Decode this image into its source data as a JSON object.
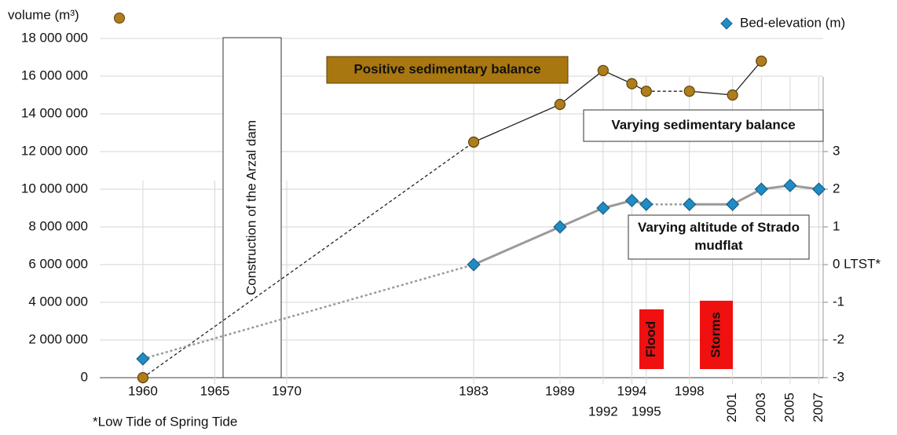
{
  "chart_data": {
    "type": "line",
    "xlim": [
      1957,
      2007.3
    ],
    "xticks": [
      1960,
      1965,
      1970,
      1983,
      1989,
      1992,
      1994,
      1995,
      1998,
      2001,
      2003,
      2005,
      2007
    ],
    "ylim": [
      0,
      18000000
    ],
    "yticks": [
      {
        "value": 0,
        "label": "0"
      },
      {
        "value": 2000000,
        "label": "2 000 000"
      },
      {
        "value": 4000000,
        "label": "4 000 000"
      },
      {
        "value": 6000000,
        "label": "6 000 000"
      },
      {
        "value": 8000000,
        "label": "8 000 000"
      },
      {
        "value": 10000000,
        "label": "10 000 000"
      },
      {
        "value": 12000000,
        "label": "12 000 000"
      },
      {
        "value": 14000000,
        "label": "14 000 000"
      },
      {
        "value": 16000000,
        "label": "16 000 000"
      },
      {
        "value": 18000000,
        "label": "18 000 000"
      }
    ],
    "y2lim": [
      -3,
      6
    ],
    "y2ticks": [
      -3,
      -2,
      -1,
      {
        "value": 0,
        "label": "0 LTST*"
      },
      1,
      2,
      3
    ],
    "grid": true,
    "series": [
      {
        "name": "volume (m³)",
        "color": "#b07d1e",
        "line_color": "#222222",
        "marker": "circle",
        "x": [
          1960,
          1983,
          1989,
          1992,
          1994,
          1995,
          1998,
          2001,
          2003
        ],
        "values": [
          0,
          12500000,
          14500000,
          16300000,
          15600000,
          15200000,
          15200000,
          15000000,
          16800000
        ]
      },
      {
        "name": "Bed-elevation (m)",
        "color": "#1f8cc4",
        "line_color": "#9a9a9a",
        "marker": "diamond",
        "axis": "y2",
        "x": [
          1960,
          1983,
          1989,
          1992,
          1994,
          1995,
          1998,
          2001,
          2003,
          2005,
          2007
        ],
        "values": [
          -2.5,
          0,
          1,
          1.5,
          1.7,
          1.6,
          1.6,
          1.6,
          2,
          2.1,
          2
        ]
      }
    ],
    "annotations": [
      "Construction of the Arzal dam",
      "Positive sedimentary balance",
      "Varying sedimentary balance",
      "Varying altitude of Strado mudflat",
      "Flood",
      "Storms"
    ],
    "footnote": "*Low Tide of Spring Tide"
  }
}
